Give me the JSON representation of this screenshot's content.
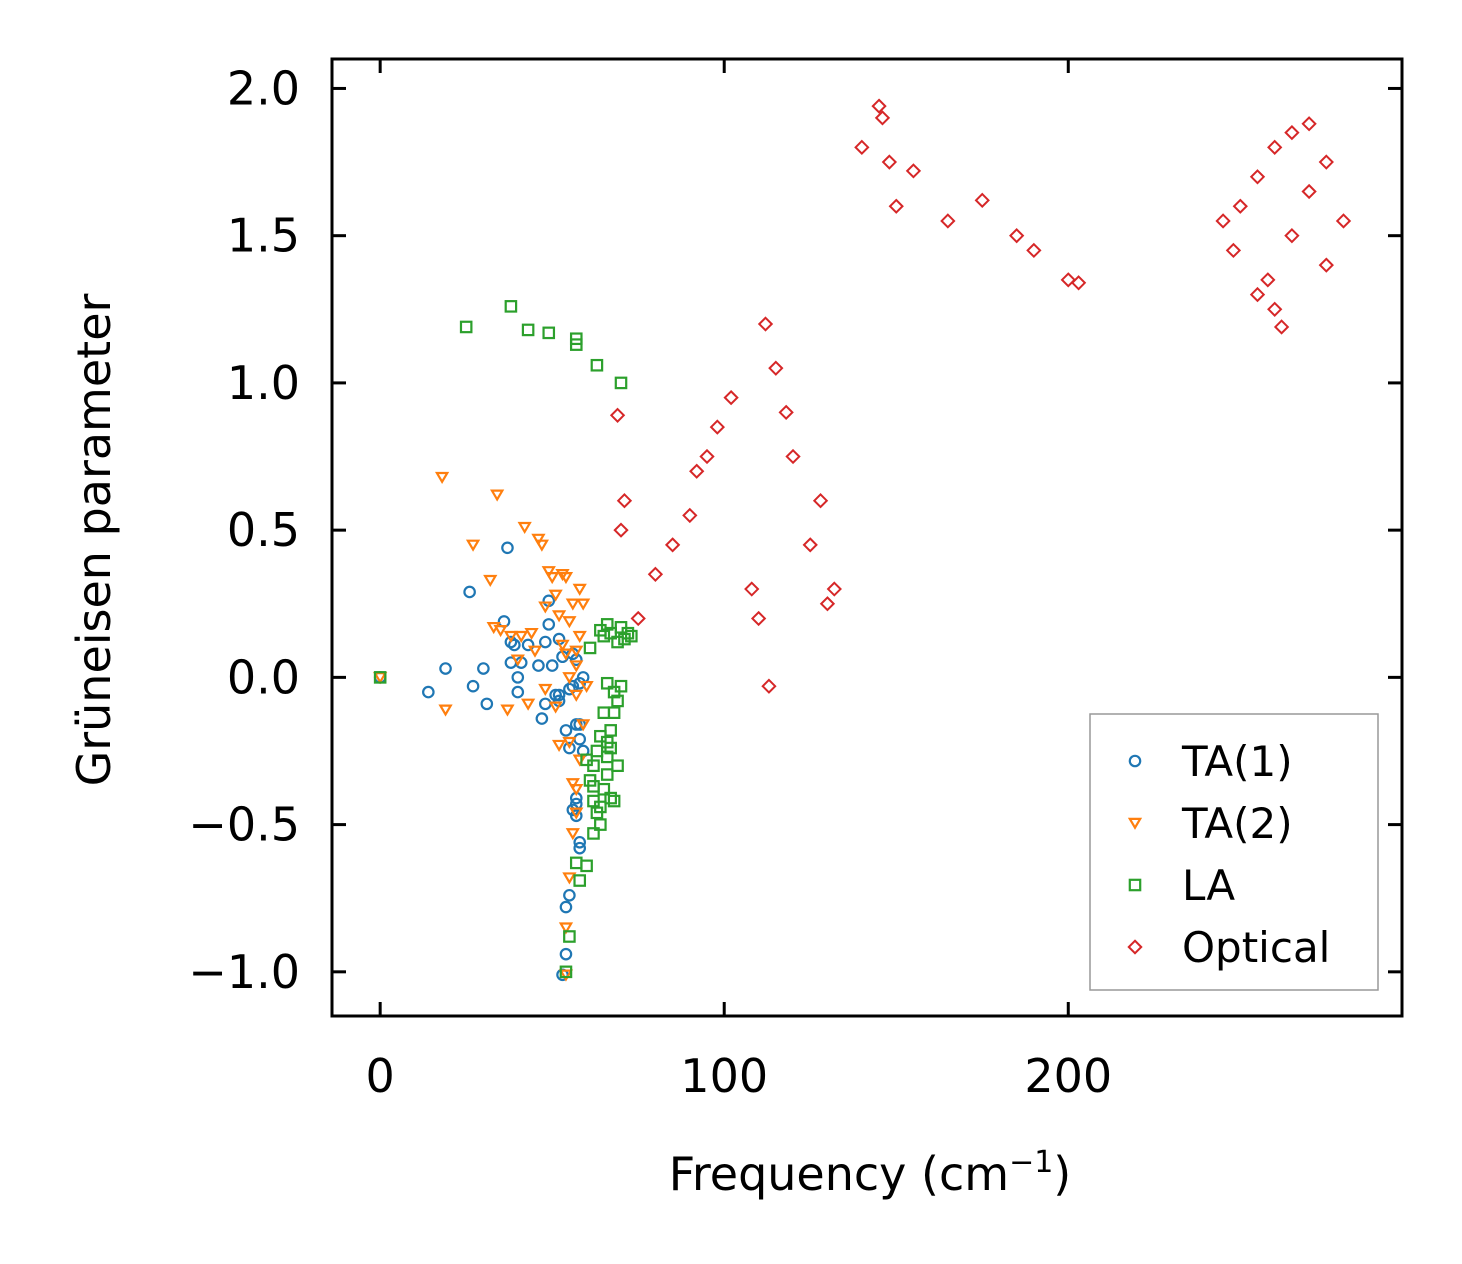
{
  "chart_data": {
    "type": "scatter",
    "xlabel": "Frequency (cm",
    "xlabel_sup": "−1",
    "xlabel_close": ")",
    "ylabel": "Grüneisen parameter",
    "xlim": [
      -14,
      297
    ],
    "ylim": [
      -1.15,
      2.1
    ],
    "xticks": [
      0,
      100,
      200
    ],
    "xtick_labels": [
      "0",
      "100",
      "200"
    ],
    "yticks": [
      -1.0,
      -0.5,
      0.0,
      0.5,
      1.0,
      1.5,
      2.0
    ],
    "ytick_labels": [
      "−1.0",
      "−0.5",
      "0.0",
      "0.5",
      "1.0",
      "1.5",
      "2.0"
    ],
    "legend_position": "lower-right",
    "series": [
      {
        "name": "TA(1)",
        "marker": "circle",
        "color": "#1f77b4",
        "x": [
          0,
          14,
          19,
          27,
          30,
          31,
          26,
          36,
          38,
          37,
          39,
          40,
          41,
          40,
          43,
          46,
          47,
          49,
          49,
          48,
          50,
          51,
          52,
          52,
          53,
          54,
          55,
          55,
          56,
          56,
          57,
          57,
          58,
          58,
          58,
          59,
          59,
          56,
          57,
          57,
          57,
          58,
          58,
          55,
          54,
          54,
          53,
          52,
          38,
          48
        ],
        "y": [
          0.0,
          -0.05,
          0.03,
          -0.03,
          0.03,
          -0.09,
          0.29,
          0.19,
          0.12,
          0.44,
          0.11,
          0.0,
          0.05,
          -0.05,
          0.11,
          0.04,
          -0.14,
          0.26,
          0.18,
          0.12,
          0.04,
          -0.06,
          0.13,
          -0.08,
          0.07,
          -0.18,
          -0.24,
          -0.04,
          0.08,
          -0.03,
          -0.16,
          0.06,
          -0.02,
          -0.21,
          -0.16,
          0.0,
          -0.25,
          -0.45,
          -0.43,
          -0.41,
          -0.47,
          -0.56,
          -0.58,
          -0.74,
          -0.78,
          -0.94,
          -1.01,
          -0.06,
          0.05,
          -0.09
        ]
      },
      {
        "name": "TA(2)",
        "marker": "triangle-down",
        "color": "#ff7f0e",
        "x": [
          0,
          18,
          19,
          27,
          32,
          33,
          34,
          35,
          37,
          41,
          42,
          43,
          46,
          47,
          48,
          49,
          50,
          51,
          52,
          53,
          53,
          54,
          54,
          55,
          55,
          56,
          57,
          57,
          58,
          58,
          59,
          60,
          55,
          56,
          57,
          57,
          56,
          55,
          54,
          54,
          52,
          51,
          48,
          45,
          44,
          40,
          38,
          57,
          59,
          58
        ],
        "y": [
          0.0,
          0.68,
          -0.11,
          0.45,
          0.33,
          0.17,
          0.62,
          0.16,
          -0.11,
          0.14,
          0.51,
          -0.09,
          0.47,
          0.45,
          0.24,
          0.36,
          0.34,
          0.28,
          0.21,
          0.35,
          0.11,
          0.08,
          0.34,
          0.0,
          0.19,
          0.25,
          0.09,
          -0.06,
          0.14,
          0.3,
          0.25,
          -0.03,
          -0.22,
          -0.36,
          -0.46,
          -0.38,
          -0.53,
          -0.68,
          -0.85,
          -1.01,
          -0.23,
          -0.1,
          -0.04,
          0.09,
          0.15,
          0.06,
          0.14,
          0.04,
          -0.16,
          -0.28
        ]
      },
      {
        "name": "LA",
        "marker": "square",
        "color": "#2ca02c",
        "x": [
          0,
          25,
          38,
          43,
          49,
          57,
          57,
          63,
          70,
          64,
          65,
          66,
          67,
          69,
          70,
          71,
          72,
          73,
          66,
          68,
          69,
          70,
          68,
          67,
          66,
          64,
          63,
          62,
          61,
          62,
          63,
          64,
          65,
          66,
          67,
          68,
          62,
          60,
          58,
          57,
          55,
          54,
          65,
          67,
          69,
          61,
          60,
          62,
          64,
          66
        ],
        "y": [
          0.0,
          1.19,
          1.26,
          1.18,
          1.17,
          1.15,
          1.13,
          1.06,
          1.0,
          0.16,
          0.14,
          0.18,
          0.15,
          0.12,
          0.17,
          0.13,
          0.15,
          0.14,
          -0.02,
          -0.05,
          -0.08,
          -0.03,
          -0.12,
          -0.18,
          -0.22,
          -0.2,
          -0.25,
          -0.3,
          -0.35,
          -0.42,
          -0.46,
          -0.5,
          -0.38,
          -0.33,
          -0.41,
          -0.42,
          -0.53,
          -0.64,
          -0.69,
          -0.63,
          -0.88,
          -1.0,
          -0.12,
          -0.24,
          -0.3,
          0.1,
          -0.28,
          -0.37,
          -0.44,
          -0.27
        ]
      },
      {
        "name": "Optical",
        "marker": "diamond",
        "color": "#d62728",
        "x": [
          69,
          71,
          70,
          113,
          145,
          146,
          148,
          140,
          155,
          150,
          165,
          175,
          185,
          190,
          200,
          203,
          250,
          255,
          260,
          265,
          270,
          275,
          280,
          255,
          260,
          262,
          258,
          245,
          248,
          265,
          270,
          275,
          130,
          132,
          125,
          128,
          120,
          118,
          115,
          112,
          110,
          108,
          102,
          98,
          95,
          92,
          90,
          85,
          80,
          75
        ],
        "y": [
          0.89,
          0.6,
          0.5,
          -0.03,
          1.94,
          1.9,
          1.75,
          1.8,
          1.72,
          1.6,
          1.55,
          1.62,
          1.5,
          1.45,
          1.35,
          1.34,
          1.6,
          1.7,
          1.8,
          1.85,
          1.88,
          1.75,
          1.55,
          1.3,
          1.25,
          1.19,
          1.35,
          1.55,
          1.45,
          1.5,
          1.65,
          1.4,
          0.25,
          0.3,
          0.45,
          0.6,
          0.75,
          0.9,
          1.05,
          1.2,
          0.2,
          0.3,
          0.95,
          0.85,
          0.75,
          0.7,
          0.55,
          0.45,
          0.35,
          0.2
        ]
      }
    ]
  }
}
